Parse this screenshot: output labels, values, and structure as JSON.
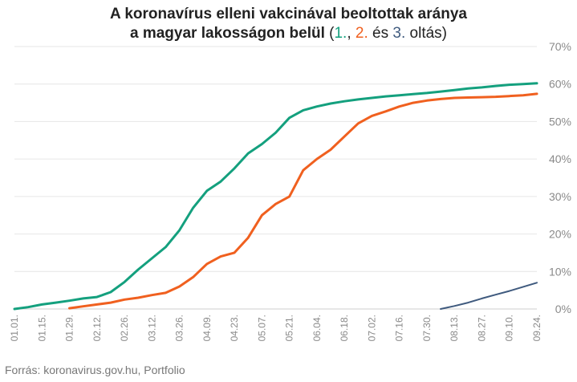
{
  "title": {
    "line1": "A koronavírus elleni vakcinával beoltottak aránya",
    "line2_main": "a magyar lakosságon belül",
    "paren_open": " (",
    "dose1": "1.",
    "sep1": ", ",
    "dose2": "2.",
    "and_word": " és ",
    "dose3": "3.",
    "suffix": " oltás)"
  },
  "source": "Forrás: koronavirus.gov.hu, Portfolio",
  "chart_data": {
    "type": "line",
    "title": "A koronavírus elleni vakcinával beoltottak aránya a magyar lakosságon belül (1., 2. és 3. oltás)",
    "xlabel": "",
    "ylabel": "",
    "ylim": [
      0,
      70
    ],
    "yticks": [
      0,
      10,
      20,
      30,
      40,
      50,
      60,
      70
    ],
    "ytick_labels": [
      "0%",
      "10%",
      "20%",
      "30%",
      "40%",
      "50%",
      "60%",
      "70%"
    ],
    "y_axis_position": "right",
    "grid": "horizontal",
    "x_ticks": [
      "01.01.",
      "01.15.",
      "01.29.",
      "02.12.",
      "02.26.",
      "03.12.",
      "03.26.",
      "04.09.",
      "04.23.",
      "05.07.",
      "05.21.",
      "06.04.",
      "06.18.",
      "07.02.",
      "07.16.",
      "07.30.",
      "08.13.",
      "08.27.",
      "09.10.",
      "09.24."
    ],
    "x": [
      "01.01.",
      "01.08.",
      "01.15.",
      "01.22.",
      "01.29.",
      "02.05.",
      "02.12.",
      "02.19.",
      "02.26.",
      "03.05.",
      "03.12.",
      "03.19.",
      "03.26.",
      "04.02.",
      "04.09.",
      "04.16.",
      "04.23.",
      "04.30.",
      "05.07.",
      "05.14.",
      "05.21.",
      "05.28.",
      "06.04.",
      "06.11.",
      "06.18.",
      "06.25.",
      "07.02.",
      "07.09.",
      "07.16.",
      "07.23.",
      "07.30.",
      "08.06.",
      "08.13.",
      "08.20.",
      "08.27.",
      "09.03.",
      "09.10.",
      "09.17.",
      "09.24."
    ],
    "colors": [
      "#14a07e",
      "#f0601f",
      "#3f5a7e"
    ],
    "series": [
      {
        "values": [
          0.0,
          0.5,
          1.2,
          1.7,
          2.2,
          2.8,
          3.2,
          4.5,
          7.2,
          10.5,
          13.5,
          16.5,
          21.0,
          27.0,
          31.5,
          34.0,
          37.5,
          41.5,
          44.0,
          47.0,
          51.0,
          53.0,
          54.0,
          54.8,
          55.4,
          55.9,
          56.3,
          56.7,
          57.0,
          57.3,
          57.6,
          58.0,
          58.4,
          58.8,
          59.1,
          59.5,
          59.8,
          60.0,
          60.2
        ]
      },
      {
        "values": [
          null,
          null,
          null,
          null,
          0.2,
          0.7,
          1.2,
          1.7,
          2.5,
          3.0,
          3.7,
          4.3,
          6.0,
          8.5,
          12.0,
          14.0,
          15.0,
          19.0,
          25.0,
          28.0,
          30.0,
          37.0,
          40.0,
          42.5,
          46.0,
          49.5,
          51.5,
          52.7,
          54.0,
          55.0,
          55.6,
          56.0,
          56.3,
          56.4,
          56.5,
          56.6,
          56.8,
          57.0,
          57.4
        ]
      },
      {
        "values": [
          null,
          null,
          null,
          null,
          null,
          null,
          null,
          null,
          null,
          null,
          null,
          null,
          null,
          null,
          null,
          null,
          null,
          null,
          null,
          null,
          null,
          null,
          null,
          null,
          null,
          null,
          null,
          null,
          null,
          null,
          null,
          0.0,
          0.8,
          1.7,
          2.8,
          3.8,
          4.8,
          5.9,
          7.0
        ]
      }
    ]
  }
}
